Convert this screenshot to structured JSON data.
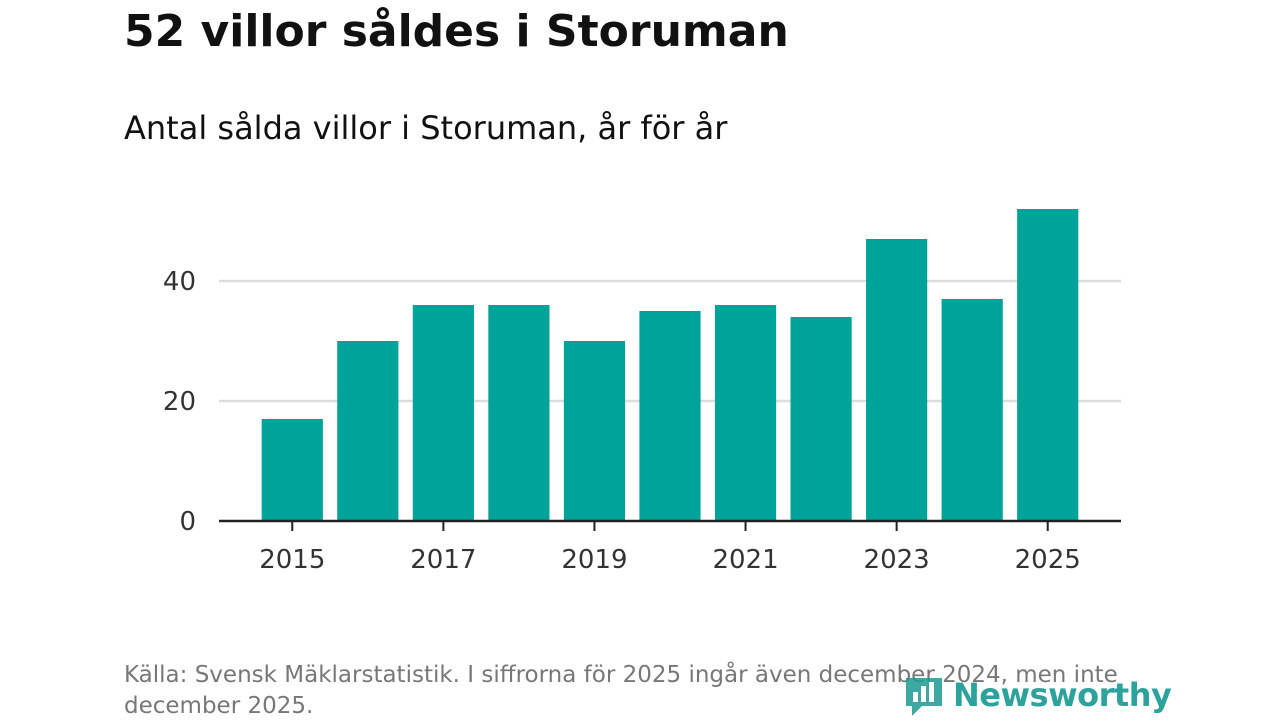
{
  "title": "52 villor såldes i Storuman",
  "subtitle": "Antal sålda villor i Storuman, år för år",
  "source": "Källa: Svensk Mäklarstatistik. I siffrorna för 2025 ingår även december 2024, men inte december 2025.",
  "logo": {
    "text": "Newsworthy",
    "icon": "bar-chart-icon"
  },
  "colors": {
    "bar": "#00a39a",
    "grid": "#dcdcdc",
    "axis": "#222222",
    "logo": "#1c9a93"
  },
  "chart_data": {
    "type": "bar",
    "title": "Antal sålda villor i Storuman, år för år",
    "xlabel": "",
    "ylabel": "",
    "categories": [
      "2015",
      "2016",
      "2017",
      "2018",
      "2019",
      "2020",
      "2021",
      "2022",
      "2023",
      "2024",
      "2025"
    ],
    "values": [
      17,
      30,
      36,
      36,
      30,
      35,
      36,
      34,
      47,
      37,
      52
    ],
    "ylim": [
      0,
      56
    ],
    "yticks": [
      0,
      20,
      40
    ],
    "xticks": [
      "2015",
      "2017",
      "2019",
      "2021",
      "2023",
      "2025"
    ],
    "grid": true,
    "legend": "none"
  }
}
